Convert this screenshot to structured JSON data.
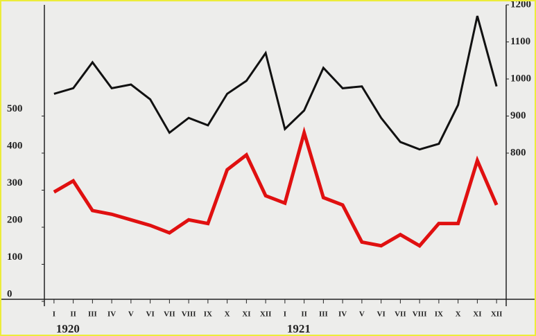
{
  "chart_data": {
    "type": "line",
    "categories": [
      "I",
      "II",
      "III",
      "IV",
      "V",
      "VI",
      "VII",
      "VIII",
      "IX",
      "X",
      "XI",
      "XII",
      "I",
      "II",
      "III",
      "IV",
      "V",
      "VI",
      "VII",
      "VIII",
      "IX",
      "X",
      "XI",
      "XII"
    ],
    "year_labels": [
      "1920",
      "1921"
    ],
    "series": [
      {
        "color": "#e01010",
        "values": [
          295,
          325,
          245,
          235,
          220,
          205,
          185,
          220,
          210,
          355,
          395,
          285,
          265,
          455,
          280,
          260,
          160,
          150,
          180,
          150,
          210,
          210,
          380,
          260
        ]
      },
      {
        "color": "#111111",
        "axis": "y2",
        "values": [
          960,
          975,
          1045,
          975,
          985,
          945,
          855,
          895,
          875,
          960,
          995,
          1070,
          865,
          915,
          1030,
          975,
          980,
          895,
          830,
          810,
          825,
          930,
          1170,
          980
        ]
      }
    ],
    "ylim": [
      0,
      800
    ],
    "yticks": [
      0,
      100,
      200,
      300,
      400,
      500
    ],
    "y2lim": [
      400,
      1200
    ],
    "y2ticks": [
      800,
      900,
      1000,
      1100,
      1200
    ]
  }
}
